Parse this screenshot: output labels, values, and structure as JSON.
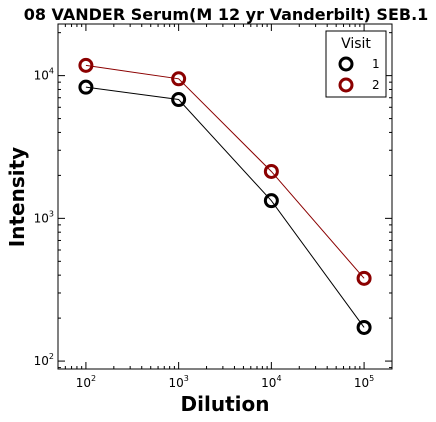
{
  "chart_data": {
    "type": "line",
    "title": "08 VANDER Serum(M 12 yr Vanderbilt) SEB.1",
    "xlabel": "Dilution",
    "ylabel": "Intensity",
    "x_scale": "log",
    "y_scale": "log",
    "xlim": [
      50,
      200000
    ],
    "ylim": [
      88,
      23000
    ],
    "x_ticks": [
      {
        "base": "10",
        "exp": "2",
        "value": 100
      },
      {
        "base": "10",
        "exp": "3",
        "value": 1000
      },
      {
        "base": "10",
        "exp": "4",
        "value": 10000
      },
      {
        "base": "10",
        "exp": "5",
        "value": 100000
      }
    ],
    "y_ticks": [
      {
        "base": "10",
        "exp": "2",
        "value": 100
      },
      {
        "base": "10",
        "exp": "3",
        "value": 1000
      },
      {
        "base": "10",
        "exp": "4",
        "value": 10000
      }
    ],
    "x": [
      100,
      1000,
      10000,
      100000
    ],
    "series": [
      {
        "name": "1",
        "color": "#000000",
        "values": [
          8300,
          6800,
          1330,
          172
        ]
      },
      {
        "name": "2",
        "color": "#8b0000",
        "values": [
          11800,
          9500,
          2130,
          380
        ]
      }
    ],
    "legend": {
      "title": "Visit",
      "placement": "top-right"
    },
    "grid": false
  }
}
